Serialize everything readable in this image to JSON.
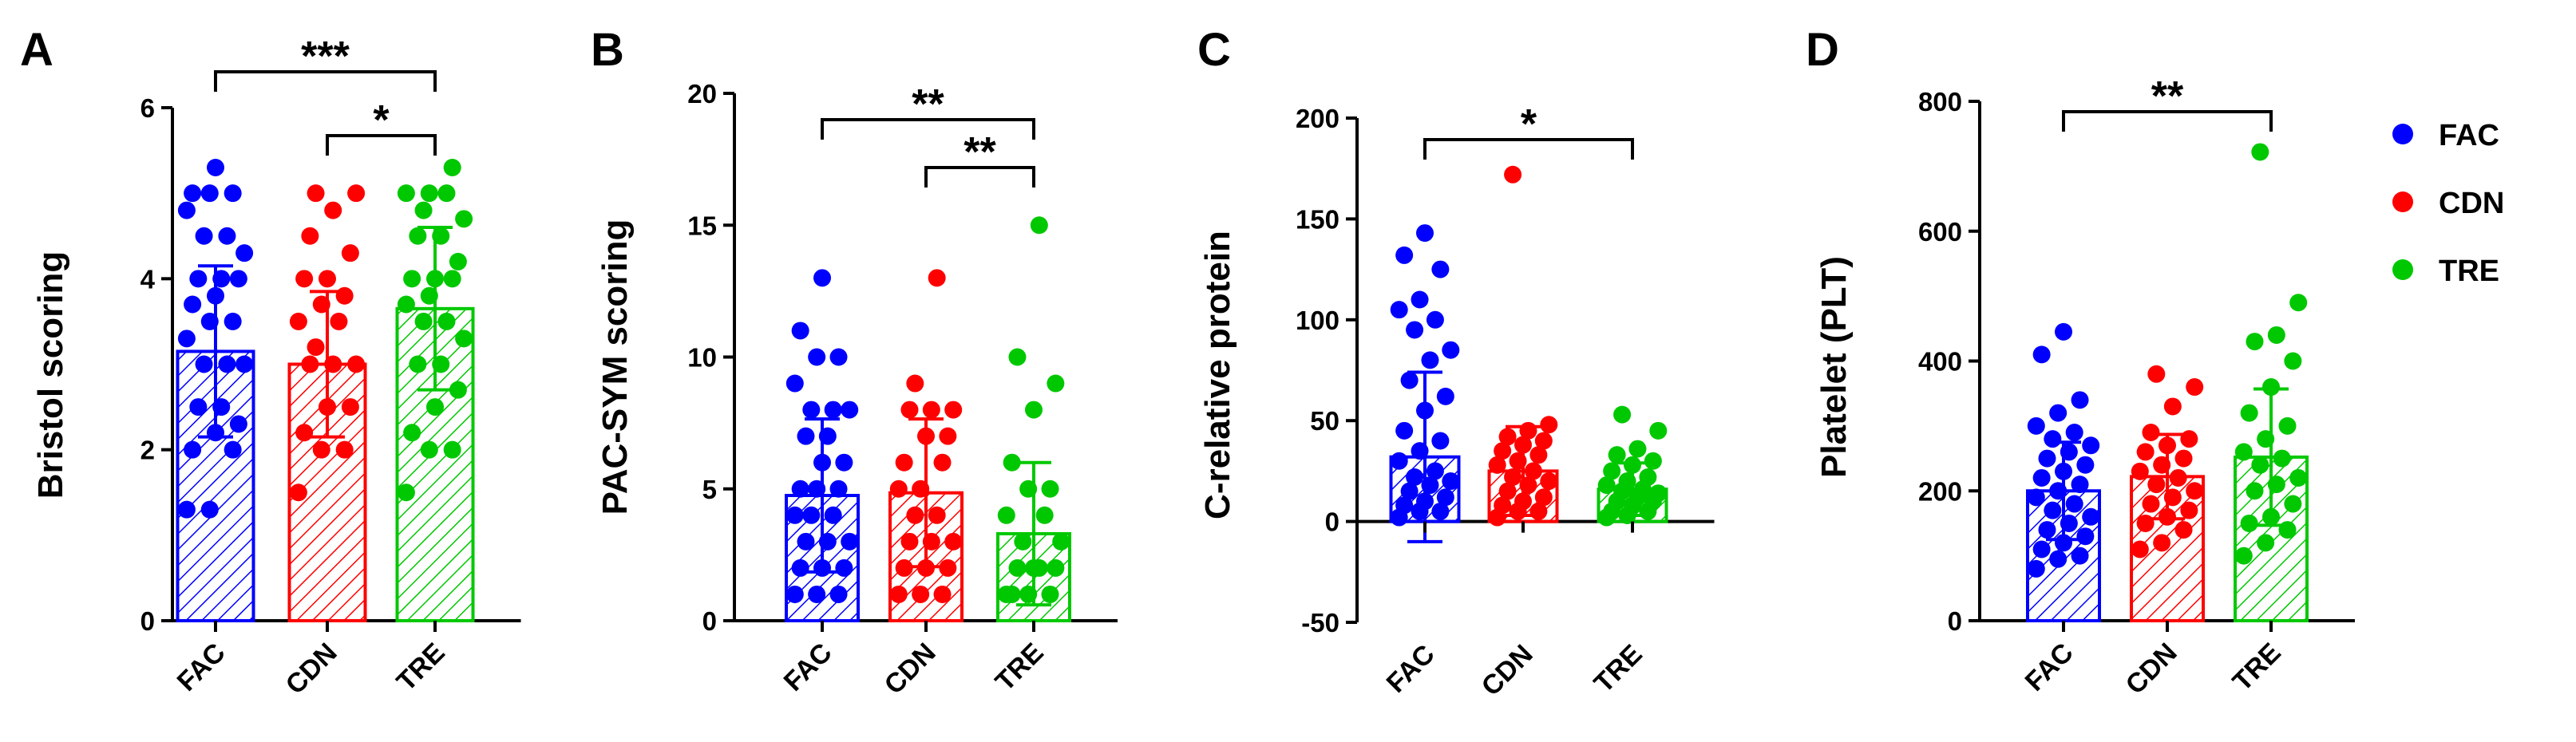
{
  "colors": {
    "FAC": "#0000ff",
    "CDN": "#ff0000",
    "TRE": "#00c800"
  },
  "legend": [
    {
      "label": "FAC",
      "color": "#0000ff"
    },
    {
      "label": "CDN",
      "color": "#ff0000"
    },
    {
      "label": "TRE",
      "color": "#00c800"
    }
  ],
  "chart_data": [
    {
      "panel": "A",
      "type": "bar",
      "ylabel": "Bristol scoring",
      "categories": [
        "FAC",
        "CDN",
        "TRE"
      ],
      "series": [
        {
          "name": "mean",
          "values": [
            3.15,
            3.0,
            3.65
          ]
        }
      ],
      "error_sd": [
        1.0,
        0.85,
        0.95
      ],
      "ylim": [
        0,
        6
      ],
      "yticks": [
        "0",
        "2",
        "4",
        "6"
      ],
      "points": {
        "FAC": [
          1.3,
          1.3,
          2.0,
          2.0,
          2.2,
          2.3,
          2.5,
          2.5,
          3.0,
          3.0,
          3.0,
          3.3,
          3.5,
          3.5,
          3.7,
          3.8,
          4.0,
          4.0,
          4.0,
          4.3,
          4.5,
          4.5,
          4.8,
          5.0,
          5.0,
          5.0,
          5.3
        ],
        "CDN": [
          1.5,
          2.0,
          2.0,
          2.2,
          2.5,
          2.5,
          3.0,
          3.0,
          3.0,
          3.2,
          3.5,
          3.5,
          3.7,
          3.8,
          4.0,
          4.0,
          4.3,
          4.5,
          4.8,
          5.0,
          5.0
        ],
        "TRE": [
          1.5,
          2.0,
          2.0,
          2.2,
          2.5,
          2.7,
          3.0,
          3.0,
          3.3,
          3.5,
          3.5,
          3.7,
          3.8,
          4.0,
          4.0,
          4.0,
          4.2,
          4.5,
          4.5,
          4.7,
          4.8,
          5.0,
          5.0,
          5.0,
          5.3
        ]
      },
      "significance": [
        {
          "from": 0,
          "to": 2,
          "label": "***"
        },
        {
          "from": 1,
          "to": 2,
          "label": "*"
        }
      ]
    },
    {
      "panel": "B",
      "type": "bar",
      "ylabel": "PAC-SYM scoring",
      "categories": [
        "FAC",
        "CDN",
        "TRE"
      ],
      "series": [
        {
          "name": "mean",
          "values": [
            4.75,
            4.85,
            3.3
          ]
        }
      ],
      "error_sd": [
        2.9,
        2.8,
        2.7
      ],
      "ylim": [
        0,
        20
      ],
      "yticks": [
        "0",
        "5",
        "10",
        "15",
        "20"
      ],
      "points": {
        "FAC": [
          1,
          1,
          1,
          2,
          2,
          2,
          3,
          3,
          3,
          4,
          4,
          4,
          5,
          5,
          5,
          6,
          6,
          7,
          7,
          8,
          8,
          8,
          9,
          10,
          10,
          11,
          13
        ],
        "CDN": [
          1,
          1,
          1,
          2,
          2,
          2,
          3,
          3,
          3,
          4,
          4,
          5,
          5,
          6,
          6,
          7,
          7,
          8,
          8,
          8,
          9,
          13
        ],
        "TRE": [
          1,
          1,
          1,
          1,
          2,
          2,
          2,
          2,
          3,
          3,
          4,
          4,
          5,
          5,
          6,
          8,
          9,
          10,
          15
        ]
      },
      "significance": [
        {
          "from": 0,
          "to": 2,
          "label": "**"
        },
        {
          "from": 1,
          "to": 2,
          "label": "**"
        }
      ]
    },
    {
      "panel": "C",
      "type": "bar",
      "ylabel": "C-relative protein",
      "categories": [
        "FAC",
        "CDN",
        "TRE"
      ],
      "series": [
        {
          "name": "mean",
          "values": [
            32,
            25,
            16
          ]
        }
      ],
      "error_sd": [
        42,
        22,
        13
      ],
      "ylim": [
        -50,
        200
      ],
      "yticks": [
        "-50",
        "0",
        "50",
        "100",
        "150",
        "200"
      ],
      "points": {
        "FAC": [
          2,
          5,
          5,
          8,
          10,
          12,
          15,
          18,
          20,
          22,
          25,
          30,
          35,
          40,
          45,
          55,
          62,
          70,
          80,
          85,
          95,
          100,
          105,
          110,
          125,
          132,
          143
        ],
        "CDN": [
          2,
          5,
          5,
          8,
          10,
          12,
          15,
          18,
          20,
          22,
          25,
          28,
          30,
          33,
          35,
          38,
          40,
          42,
          45,
          48,
          172
        ],
        "TRE": [
          2,
          3,
          5,
          5,
          8,
          10,
          10,
          12,
          14,
          15,
          16,
          18,
          20,
          22,
          25,
          28,
          30,
          33,
          36,
          45,
          53
        ]
      },
      "significance": [
        {
          "from": 0,
          "to": 2,
          "label": "*"
        }
      ]
    },
    {
      "panel": "D",
      "type": "bar",
      "ylabel": "Platelet (PLT)",
      "categories": [
        "FAC",
        "CDN",
        "TRE"
      ],
      "series": [
        {
          "name": "mean",
          "values": [
            200,
            222,
            252
          ]
        }
      ],
      "error_sd": [
        75,
        65,
        105
      ],
      "ylim": [
        0,
        800
      ],
      "yticks": [
        "0",
        "200",
        "400",
        "600",
        "800"
      ],
      "points": {
        "FAC": [
          80,
          95,
          100,
          110,
          120,
          130,
          140,
          150,
          160,
          170,
          180,
          190,
          200,
          210,
          220,
          230,
          240,
          250,
          260,
          270,
          280,
          290,
          300,
          320,
          340,
          410,
          445
        ],
        "CDN": [
          110,
          120,
          140,
          150,
          160,
          170,
          180,
          190,
          200,
          210,
          220,
          230,
          240,
          250,
          260,
          270,
          280,
          290,
          330,
          360,
          380
        ],
        "TRE": [
          100,
          120,
          140,
          150,
          160,
          180,
          200,
          210,
          220,
          240,
          250,
          260,
          280,
          300,
          320,
          360,
          400,
          430,
          440,
          490,
          722
        ]
      },
      "significance": [
        {
          "from": 0,
          "to": 2,
          "label": "**"
        }
      ]
    }
  ]
}
